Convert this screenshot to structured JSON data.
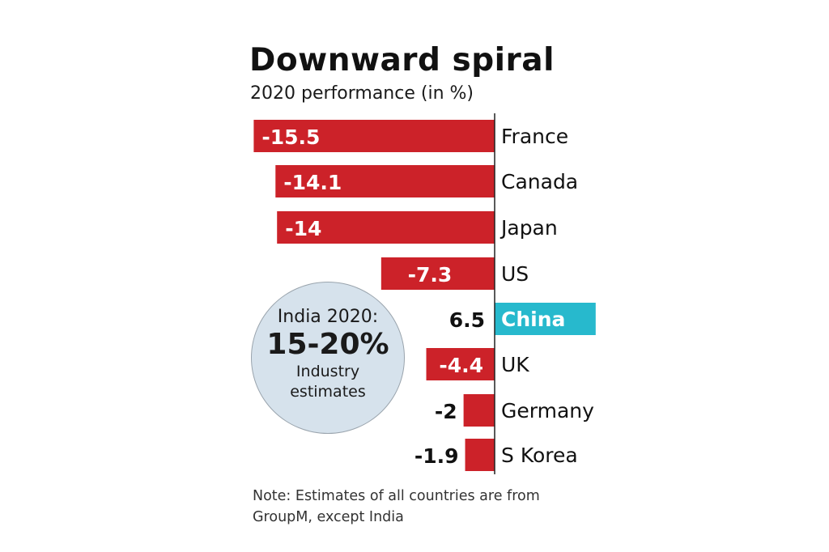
{
  "chart_data": {
    "type": "bar",
    "orientation": "horizontal",
    "title": "Downward spiral",
    "subtitle": "2020 performance (in %)",
    "xlabel": "",
    "ylabel": "",
    "categories": [
      "France",
      "Canada",
      "Japan",
      "US",
      "China",
      "UK",
      "Germany",
      "S Korea"
    ],
    "values": [
      -15.5,
      -14.1,
      -14,
      -7.3,
      6.5,
      -4.4,
      -2,
      -1.9
    ],
    "value_labels": [
      "-15.5",
      "-14.1",
      "-14",
      "-7.3",
      "6.5",
      "-4.4",
      "-2",
      "-1.9"
    ],
    "xlim": [
      -15.5,
      6.5
    ],
    "grid": false,
    "legend": "none",
    "colors": {
      "negative": "#cc2229",
      "positive": "#27b9cd"
    },
    "annotation": {
      "line1": "India 2020:",
      "line2": "15-20%",
      "line3": "Industry",
      "line4": "estimates"
    },
    "note": "Note: Estimates of all countries are from GroupM, except India"
  }
}
